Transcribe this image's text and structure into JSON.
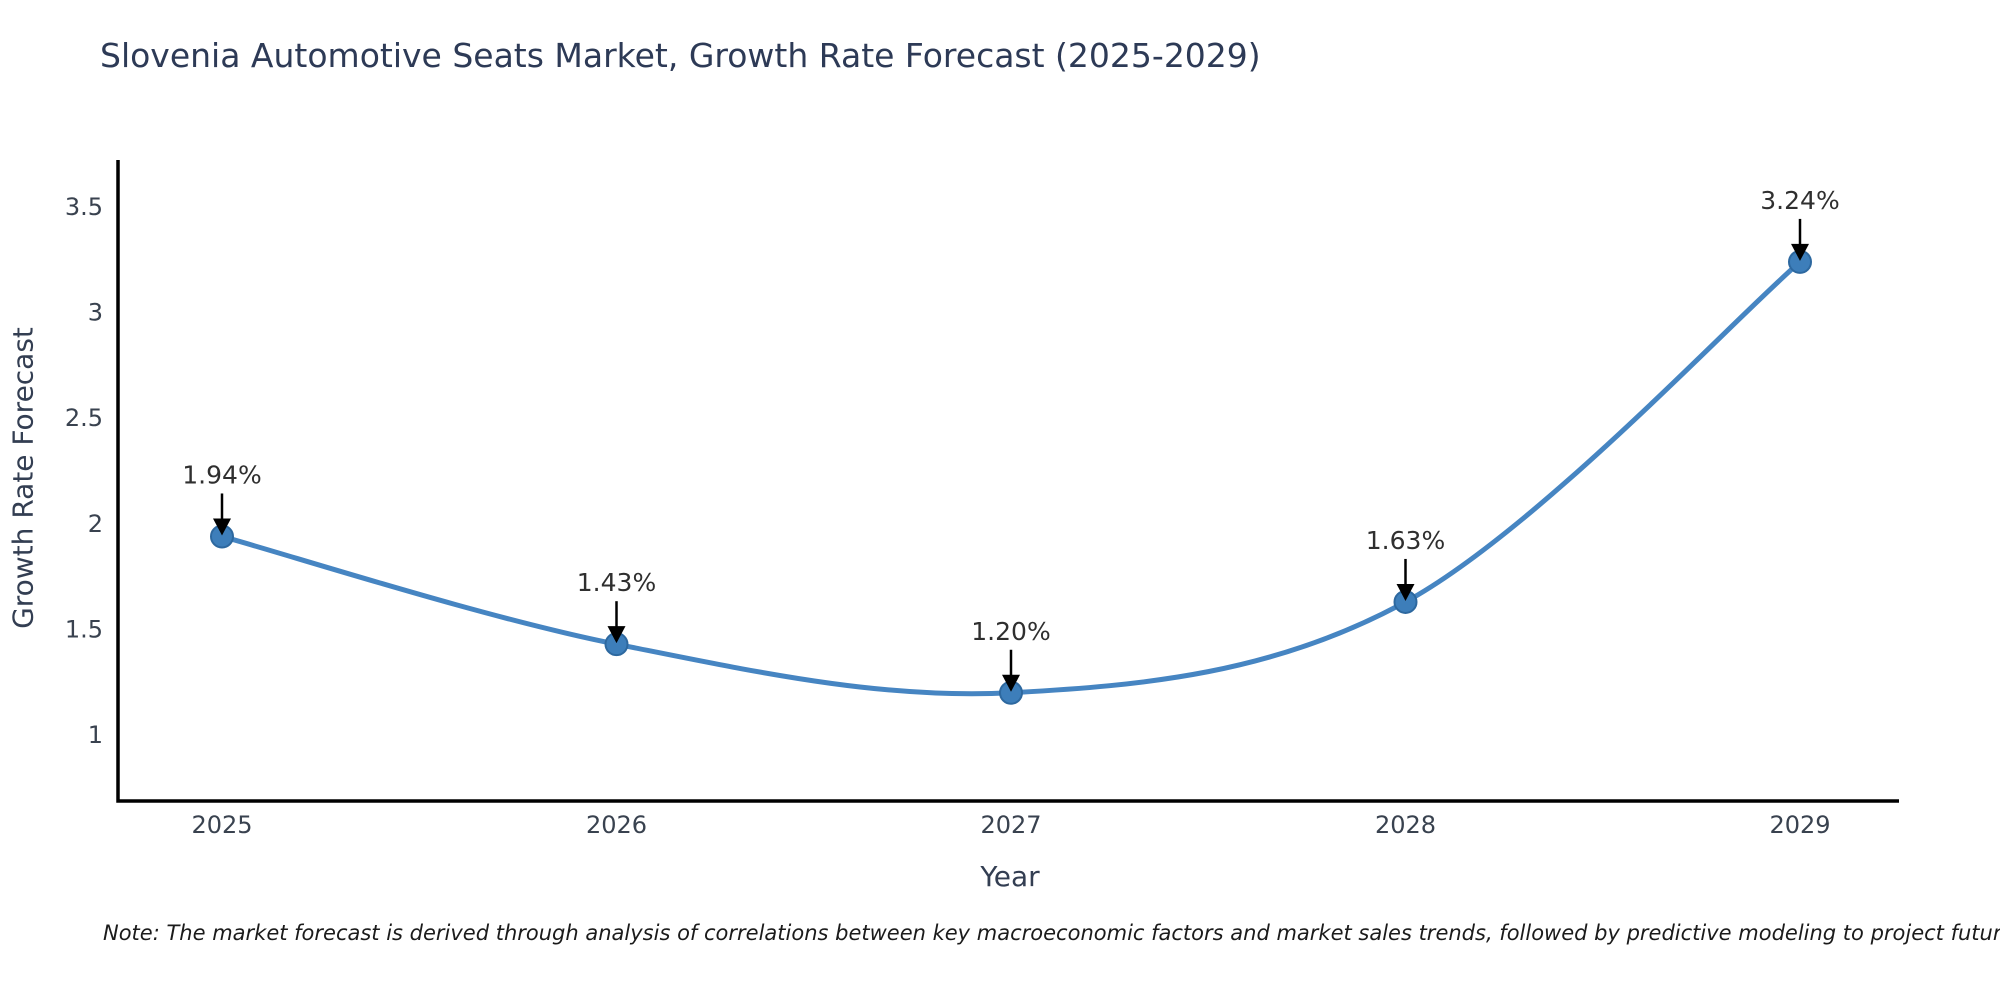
{
  "title": "Slovenia Automotive Seats Market, Growth Rate Forecast (2025-2029)",
  "note": "Note: The market forecast is derived through analysis of correlations between key macroeconomic factors and market sales trends, followed by predictive modeling to project future sales",
  "colors": {
    "line": "#4685c2",
    "marker_fill": "#3d7eba",
    "marker_edge": "#2d689f",
    "axis": "#000000",
    "tick_text": "#39424f",
    "annotation_text": "#2f2f2f",
    "arrow": "#000000",
    "title_text": "#2d3a56",
    "axis_label_text": "#333e52"
  },
  "chart_data": {
    "type": "line",
    "title": "Slovenia Automotive Seats Market, Growth Rate Forecast (2025-2029)",
    "xlabel": "Year",
    "ylabel": "Growth Rate Forecast",
    "x": [
      2025,
      2026,
      2027,
      2028,
      2029
    ],
    "series": [
      {
        "name": "Growth Rate Forecast",
        "values": [
          1.94,
          1.43,
          1.2,
          1.63,
          3.24
        ],
        "point_labels": [
          "1.94%",
          "1.43%",
          "1.20%",
          "1.63%",
          "3.24%"
        ]
      }
    ],
    "yticks": [
      1,
      1.5,
      2,
      2.5,
      3,
      3.5
    ],
    "ylim": [
      0.69,
      3.72
    ],
    "xlim": [
      2024.74,
      2029.25
    ],
    "line_shape": "spline",
    "grid": false,
    "legend_position": "none",
    "annotations": "value labels with down arrows above each point"
  }
}
